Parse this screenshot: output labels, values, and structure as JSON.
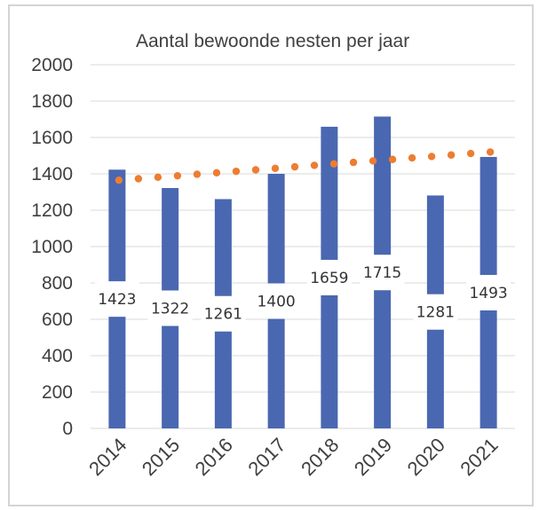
{
  "chart_data": {
    "type": "bar",
    "title": "Aantal bewoonde nesten per jaar",
    "xlabel": "",
    "ylabel": "",
    "ylim": [
      0,
      2000
    ],
    "yticks": [
      0,
      200,
      400,
      600,
      800,
      1000,
      1200,
      1400,
      1600,
      1800,
      2000
    ],
    "categories": [
      "2014",
      "2015",
      "2016",
      "2017",
      "2018",
      "2019",
      "2020",
      "2021"
    ],
    "values": [
      1423,
      1322,
      1261,
      1400,
      1659,
      1715,
      1281,
      1493
    ],
    "data_labels": [
      "1423",
      "1322",
      "1261",
      "1400",
      "1659",
      "1715",
      "1281",
      "1493"
    ],
    "trendline": {
      "type": "linear",
      "style": "dotted",
      "start": 1365,
      "end": 1520
    },
    "grid": true,
    "legend": "none",
    "colors": {
      "bar": "#4a67b1",
      "trendline": "#ed7d31",
      "grid": "#d9d9d9",
      "text": "#404040"
    }
  }
}
